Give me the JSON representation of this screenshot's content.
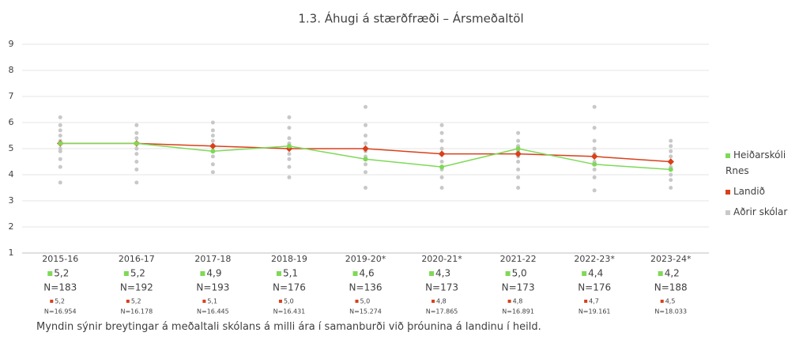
{
  "chart_data": {
    "type": "line",
    "title": "1.3. Áhugi á stærðfræði – Ársmeðaltöl",
    "categories": [
      "2015-16",
      "2016-17",
      "2017-18",
      "2018-19",
      "2019-20*",
      "2020-21*",
      "2021-22",
      "2022-23*",
      "2023-24*"
    ],
    "ylim": [
      1,
      9
    ],
    "yticks": [
      1,
      2,
      3,
      4,
      5,
      6,
      7,
      8,
      9
    ],
    "grid": true,
    "series": [
      {
        "name": "Heiðarskóli Rnes",
        "color": "#7ed957",
        "values": [
          5.2,
          5.2,
          4.9,
          5.1,
          4.6,
          4.3,
          5.0,
          4.4,
          4.2
        ],
        "value_labels": [
          "5,2",
          "5,2",
          "4,9",
          "5,1",
          "4,6",
          "4,3",
          "5,0",
          "4,4",
          "4,2"
        ],
        "n_labels": [
          "N=183",
          "N=192",
          "N=193",
          "N=176",
          "N=136",
          "N=173",
          "N=173",
          "N=176",
          "N=188"
        ]
      },
      {
        "name": "Landið",
        "color": "#d9401a",
        "values": [
          5.2,
          5.2,
          5.1,
          5.0,
          5.0,
          4.8,
          4.8,
          4.7,
          4.5
        ],
        "value_labels": [
          "5,2",
          "5,2",
          "5,1",
          "5,0",
          "5,0",
          "4,8",
          "4,8",
          "4,7",
          "4,5"
        ],
        "n_labels": [
          "N=16.954",
          "N=16.178",
          "N=16.445",
          "N=16.431",
          "N=15.274",
          "N=17.865",
          "N=16.891",
          "N=19.161",
          "N=18.033"
        ]
      },
      {
        "name": "Aðrir skólar",
        "color": "#c8c8c8",
        "type": "scatter",
        "values": [
          [
            3.7,
            4.3,
            4.6,
            4.9,
            5.0,
            5.3,
            5.5,
            5.7,
            5.9,
            6.2
          ],
          [
            3.7,
            4.2,
            4.5,
            4.8,
            5.0,
            5.2,
            5.4,
            5.6,
            5.9
          ],
          [
            4.1,
            4.4,
            4.7,
            4.9,
            5.1,
            5.3,
            5.5,
            5.7,
            6.0
          ],
          [
            3.9,
            4.3,
            4.6,
            4.8,
            5.0,
            5.2,
            5.4,
            5.8,
            6.2
          ],
          [
            3.5,
            4.1,
            4.4,
            4.7,
            4.9,
            5.2,
            5.5,
            5.9,
            6.6
          ],
          [
            3.5,
            3.9,
            4.2,
            4.5,
            4.8,
            5.0,
            5.3,
            5.6,
            5.9
          ],
          [
            3.5,
            3.9,
            4.2,
            4.5,
            4.7,
            4.9,
            5.1,
            5.3,
            5.6
          ],
          [
            3.4,
            3.9,
            4.2,
            4.5,
            4.8,
            5.0,
            5.3,
            5.8,
            6.6
          ],
          [
            3.5,
            3.8,
            4.0,
            4.3,
            4.5,
            4.7,
            4.9,
            5.1,
            5.3
          ]
        ]
      }
    ],
    "caption": "Myndin sýnir breytingar á meðaltali skólans á milli ára í samanburði við þróunina á landinu í heild."
  }
}
